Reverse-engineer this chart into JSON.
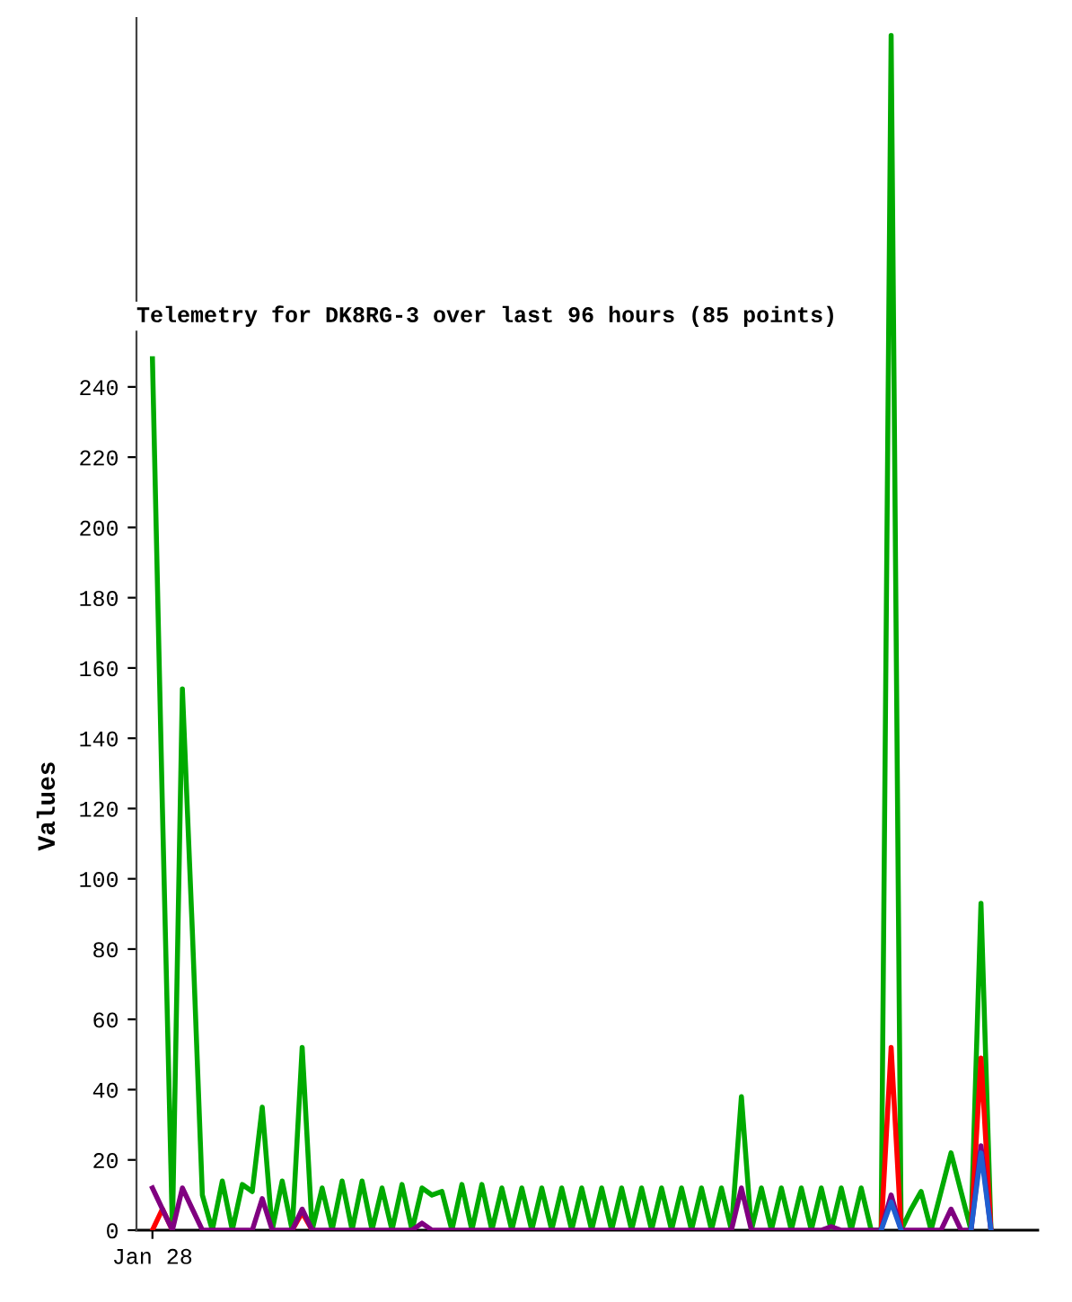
{
  "chart_data": {
    "type": "line",
    "title": "Telemetry for DK8RG-3 over last 96 hours (85 points)",
    "ylabel": "Values",
    "categories": [
      "Jan 28",
      null,
      null,
      null,
      null,
      null,
      null,
      null,
      null,
      null,
      null,
      null,
      null,
      null,
      null,
      null,
      null,
      null,
      null,
      null,
      null,
      null,
      null,
      null,
      null,
      null,
      null,
      null,
      null,
      null,
      null,
      null,
      null,
      null,
      null,
      null,
      null,
      null,
      null,
      null,
      null,
      null,
      null,
      null,
      null,
      null,
      null,
      null,
      null,
      null,
      null,
      null,
      null,
      null,
      null,
      null,
      null,
      null,
      null,
      null,
      null,
      null,
      null,
      null,
      null,
      null,
      null,
      null,
      null,
      null,
      null,
      null,
      null,
      null,
      null,
      null,
      null,
      null,
      null,
      null,
      null,
      null,
      null,
      null,
      null
    ],
    "ylim": [
      0,
      345
    ],
    "yticks": [
      0,
      20,
      40,
      60,
      80,
      100,
      120,
      140,
      160,
      180,
      200,
      220,
      240
    ],
    "series": [
      {
        "color": "#00aa00",
        "values": [
          248,
          120,
          0,
          154,
          85,
          10,
          0,
          14,
          0,
          13,
          11,
          35,
          0,
          14,
          0,
          52,
          0,
          12,
          0,
          14,
          0,
          14,
          0,
          12,
          0,
          13,
          0,
          12,
          10,
          11,
          0,
          13,
          0,
          13,
          0,
          12,
          0,
          12,
          0,
          12,
          0,
          12,
          0,
          12,
          0,
          12,
          0,
          12,
          0,
          12,
          0,
          12,
          0,
          12,
          0,
          12,
          0,
          12,
          0,
          38,
          0,
          12,
          0,
          12,
          0,
          12,
          0,
          12,
          0,
          12,
          0,
          12,
          0,
          0,
          340,
          0,
          6,
          11,
          0,
          11,
          22,
          11,
          0,
          93,
          0
        ]
      },
      {
        "color": "#ff0000",
        "values": [
          0,
          6,
          0,
          null,
          null,
          null,
          null,
          null,
          null,
          null,
          null,
          null,
          null,
          null,
          0,
          5,
          0,
          null,
          null,
          null,
          null,
          null,
          null,
          null,
          null,
          null,
          null,
          null,
          null,
          null,
          null,
          null,
          null,
          null,
          null,
          null,
          null,
          null,
          null,
          null,
          null,
          null,
          null,
          null,
          null,
          null,
          null,
          null,
          null,
          null,
          null,
          null,
          null,
          null,
          null,
          null,
          null,
          null,
          null,
          null,
          null,
          null,
          null,
          null,
          null,
          null,
          null,
          null,
          null,
          null,
          null,
          null,
          null,
          0,
          52,
          0,
          null,
          null,
          null,
          null,
          null,
          null,
          0,
          49,
          0
        ]
      },
      {
        "color": "#1f5fd0",
        "values": [
          null,
          null,
          null,
          null,
          null,
          null,
          null,
          null,
          null,
          null,
          null,
          null,
          null,
          null,
          null,
          null,
          null,
          null,
          null,
          null,
          null,
          null,
          null,
          null,
          null,
          null,
          null,
          null,
          null,
          null,
          null,
          null,
          null,
          null,
          null,
          null,
          null,
          null,
          null,
          null,
          null,
          null,
          null,
          null,
          null,
          null,
          null,
          null,
          null,
          null,
          null,
          null,
          null,
          null,
          null,
          null,
          null,
          null,
          null,
          null,
          null,
          null,
          null,
          null,
          null,
          null,
          null,
          null,
          null,
          null,
          null,
          null,
          null,
          0,
          8,
          0,
          null,
          null,
          null,
          null,
          null,
          null,
          0,
          22,
          0
        ]
      },
      {
        "color": "#800080",
        "values": [
          12,
          6,
          0,
          12,
          6,
          0,
          0,
          0,
          0,
          0,
          0,
          9,
          0,
          0,
          0,
          6,
          0,
          0,
          0,
          0,
          0,
          0,
          0,
          0,
          0,
          0,
          0,
          2,
          0,
          0,
          0,
          0,
          0,
          0,
          0,
          0,
          0,
          0,
          0,
          0,
          0,
          0,
          0,
          0,
          0,
          0,
          0,
          0,
          0,
          0,
          0,
          0,
          0,
          0,
          0,
          0,
          0,
          0,
          0,
          12,
          0,
          0,
          0,
          0,
          0,
          0,
          0,
          0,
          1,
          0,
          0,
          0,
          0,
          0,
          10,
          0,
          0,
          0,
          0,
          0,
          6,
          0,
          0,
          24,
          0
        ]
      }
    ]
  }
}
